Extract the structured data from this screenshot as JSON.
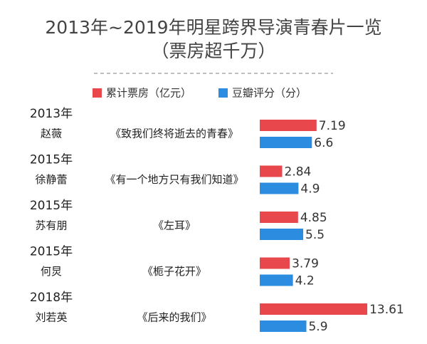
{
  "chart_data": {
    "type": "bar",
    "orientation": "horizontal",
    "title": "2013年~2019年明星跨界导演青春片一览",
    "subtitle": "（票房超千万）",
    "years": [
      "2013年",
      "2015年",
      "2015年",
      "2015年",
      "2018年"
    ],
    "directors": [
      "赵薇",
      "徐静蕾",
      "苏有朋",
      "何炅",
      "刘若英"
    ],
    "categories": [
      "《致我们终将逝去的青春》",
      "《有一个地方只有我们知道》",
      "《左耳》",
      "《栀子花开》",
      "《后来的我们》"
    ],
    "series": [
      {
        "name": "累计票房（亿元）",
        "color": "#e8474b",
        "values": [
          7.19,
          2.84,
          4.85,
          3.79,
          13.61
        ]
      },
      {
        "name": "豆瓣评分（分）",
        "color": "#2b8ce0",
        "values": [
          6.6,
          4.9,
          5.5,
          4.2,
          5.9
        ]
      }
    ]
  }
}
